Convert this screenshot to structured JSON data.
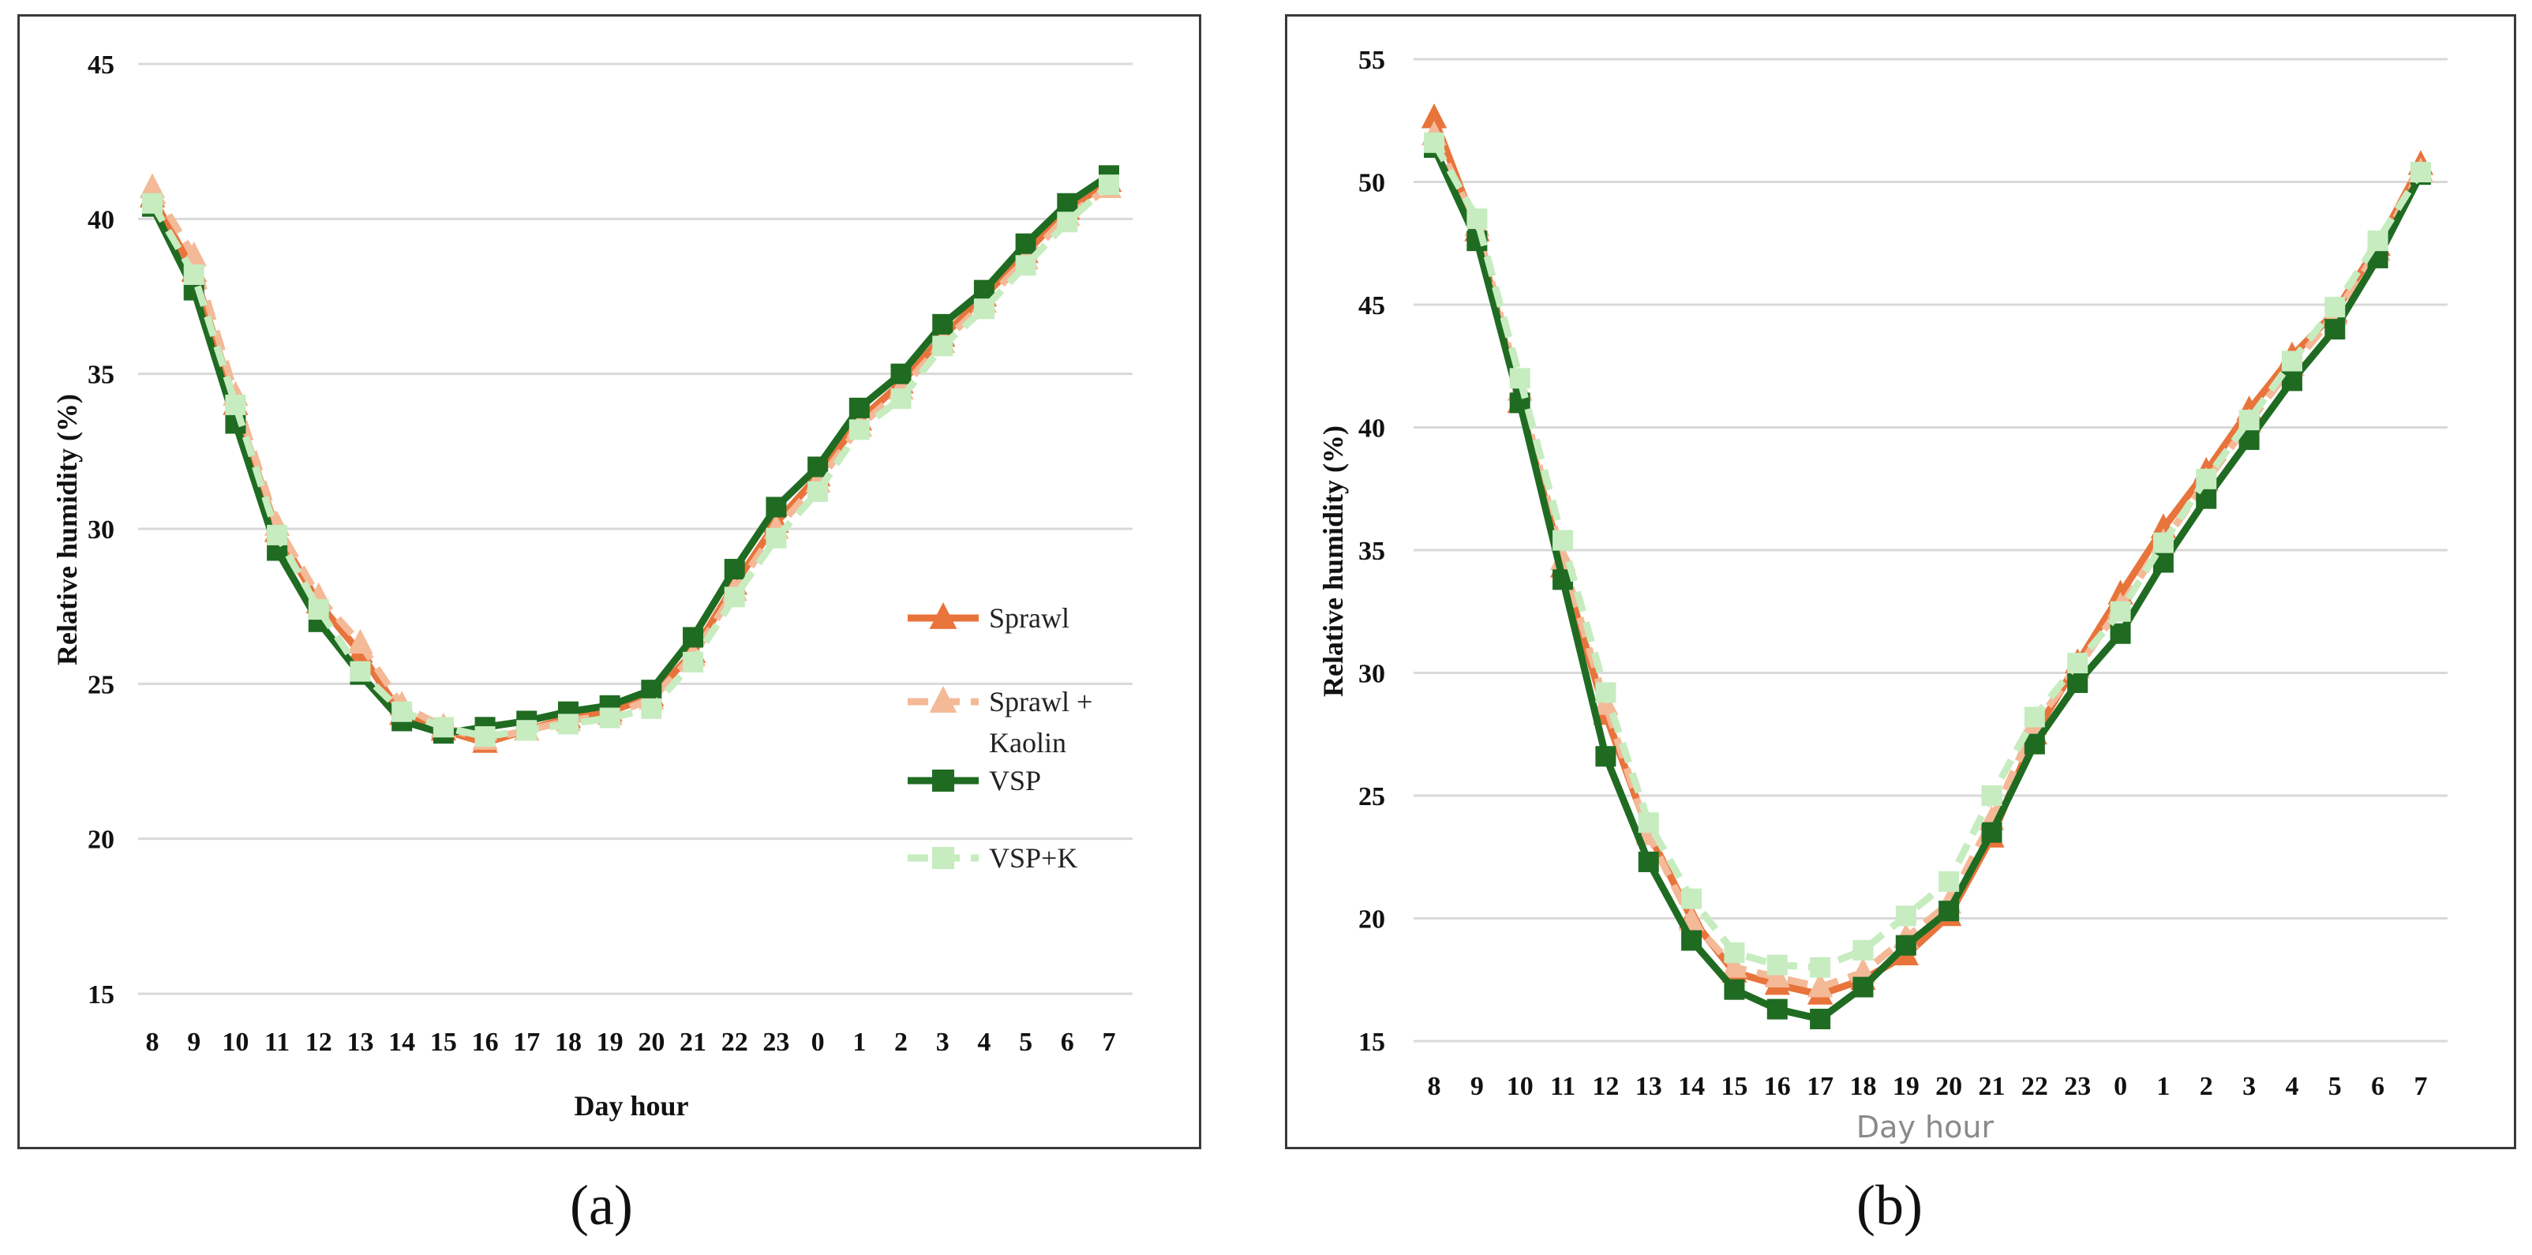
{
  "captions": {
    "a": "(a)",
    "b": "(b)"
  },
  "colors": {
    "sprawl": "#e8743b",
    "sprawl_kaolin": "#f4b997",
    "vsp": "#1f6b22",
    "vsp_k": "#c6ecc0",
    "grid": "#d9d9d9"
  },
  "chart_data": [
    {
      "type": "line",
      "panel": "a",
      "categories": [
        "8",
        "9",
        "10",
        "11",
        "12",
        "13",
        "14",
        "15",
        "16",
        "17",
        "18",
        "19",
        "20",
        "21",
        "22",
        "23",
        "0",
        "1",
        "2",
        "3",
        "4",
        "5",
        "6",
        "7"
      ],
      "xlabel": "Day hour",
      "ylabel": "Relative humidity  (%)",
      "ylim": [
        15,
        45
      ],
      "yticks": [
        15,
        20,
        25,
        30,
        35,
        40,
        45
      ],
      "grid": true,
      "legend_position": "right-middle",
      "series": [
        {
          "name": "Sprawl",
          "marker": "triangle",
          "dash": "solid",
          "color_key": "sprawl",
          "values": [
            40.7,
            38.3,
            34.0,
            29.9,
            27.6,
            26.0,
            24.0,
            23.5,
            23.1,
            23.5,
            23.9,
            24.1,
            24.6,
            26.0,
            28.2,
            30.2,
            31.7,
            33.5,
            34.7,
            36.2,
            37.5,
            38.9,
            40.3,
            41.2
          ]
        },
        {
          "name": "Sprawl +\nKaolin",
          "marker": "triangle",
          "dash": "dashed",
          "color_key": "sprawl_kaolin",
          "values": [
            41.0,
            38.8,
            34.3,
            30.1,
            27.8,
            26.3,
            24.3,
            23.6,
            23.2,
            23.5,
            23.8,
            24.0,
            24.5,
            25.9,
            28.0,
            30.0,
            31.5,
            33.3,
            34.5,
            36.0,
            37.3,
            38.7,
            40.1,
            41.0
          ]
        },
        {
          "name": "VSP",
          "marker": "square",
          "dash": "solid",
          "color_key": "vsp",
          "values": [
            40.4,
            37.7,
            33.4,
            29.3,
            27.0,
            25.3,
            23.8,
            23.4,
            23.6,
            23.8,
            24.1,
            24.3,
            24.8,
            26.5,
            28.7,
            30.7,
            32.0,
            33.9,
            35.0,
            36.6,
            37.7,
            39.2,
            40.5,
            41.4
          ]
        },
        {
          "name": "VSP+K",
          "marker": "square",
          "dash": "dashed",
          "color_key": "vsp_k",
          "values": [
            40.5,
            38.2,
            34.0,
            29.8,
            27.4,
            25.4,
            24.1,
            23.6,
            23.3,
            23.5,
            23.7,
            23.9,
            24.2,
            25.7,
            27.8,
            29.7,
            31.2,
            33.2,
            34.2,
            35.9,
            37.1,
            38.5,
            39.9,
            41.1
          ]
        }
      ]
    },
    {
      "type": "line",
      "panel": "b",
      "categories": [
        "8",
        "9",
        "10",
        "11",
        "12",
        "13",
        "14",
        "15",
        "16",
        "17",
        "18",
        "19",
        "20",
        "21",
        "22",
        "23",
        "0",
        "1",
        "2",
        "3",
        "4",
        "5",
        "6",
        "7"
      ],
      "xlabel": "Day hour",
      "ylabel": "Relative humidity   (%)",
      "ylim": [
        15,
        55
      ],
      "yticks": [
        15,
        20,
        25,
        30,
        35,
        40,
        45,
        50,
        55
      ],
      "grid": true,
      "series": [
        {
          "marker": "triangle",
          "dash": "solid",
          "color_key": "sprawl",
          "values": [
            52.6,
            48.0,
            41.0,
            34.3,
            28.3,
            23.5,
            20.0,
            17.8,
            17.3,
            16.9,
            17.5,
            18.5,
            20.1,
            23.3,
            27.5,
            30.4,
            33.2,
            35.9,
            38.2,
            40.7,
            42.9,
            44.7,
            47.4,
            50.7
          ]
        },
        {
          "marker": "triangle",
          "dash": "dashed",
          "color_key": "sprawl_kaolin",
          "values": [
            51.9,
            48.2,
            41.5,
            34.6,
            28.7,
            23.4,
            19.9,
            18.0,
            17.6,
            17.2,
            17.8,
            19.2,
            20.6,
            24.0,
            27.9,
            30.2,
            32.7,
            35.3,
            37.8,
            40.2,
            42.5,
            44.6,
            47.2,
            50.4
          ]
        },
        {
          "marker": "square",
          "dash": "solid",
          "color_key": "vsp",
          "values": [
            51.4,
            47.6,
            41.0,
            33.8,
            26.6,
            22.3,
            19.1,
            17.1,
            16.3,
            15.9,
            17.2,
            18.9,
            20.3,
            23.5,
            27.1,
            29.6,
            31.6,
            34.5,
            37.1,
            39.5,
            41.9,
            44.0,
            46.9,
            50.3
          ]
        },
        {
          "marker": "square",
          "dash": "dashed",
          "color_key": "vsp_k",
          "values": [
            51.6,
            48.5,
            42.0,
            35.4,
            29.2,
            23.9,
            20.8,
            18.6,
            18.1,
            18.0,
            18.7,
            20.1,
            21.5,
            25.0,
            28.2,
            30.4,
            32.5,
            35.3,
            37.9,
            40.3,
            42.7,
            44.9,
            47.6,
            50.4
          ]
        }
      ]
    }
  ]
}
